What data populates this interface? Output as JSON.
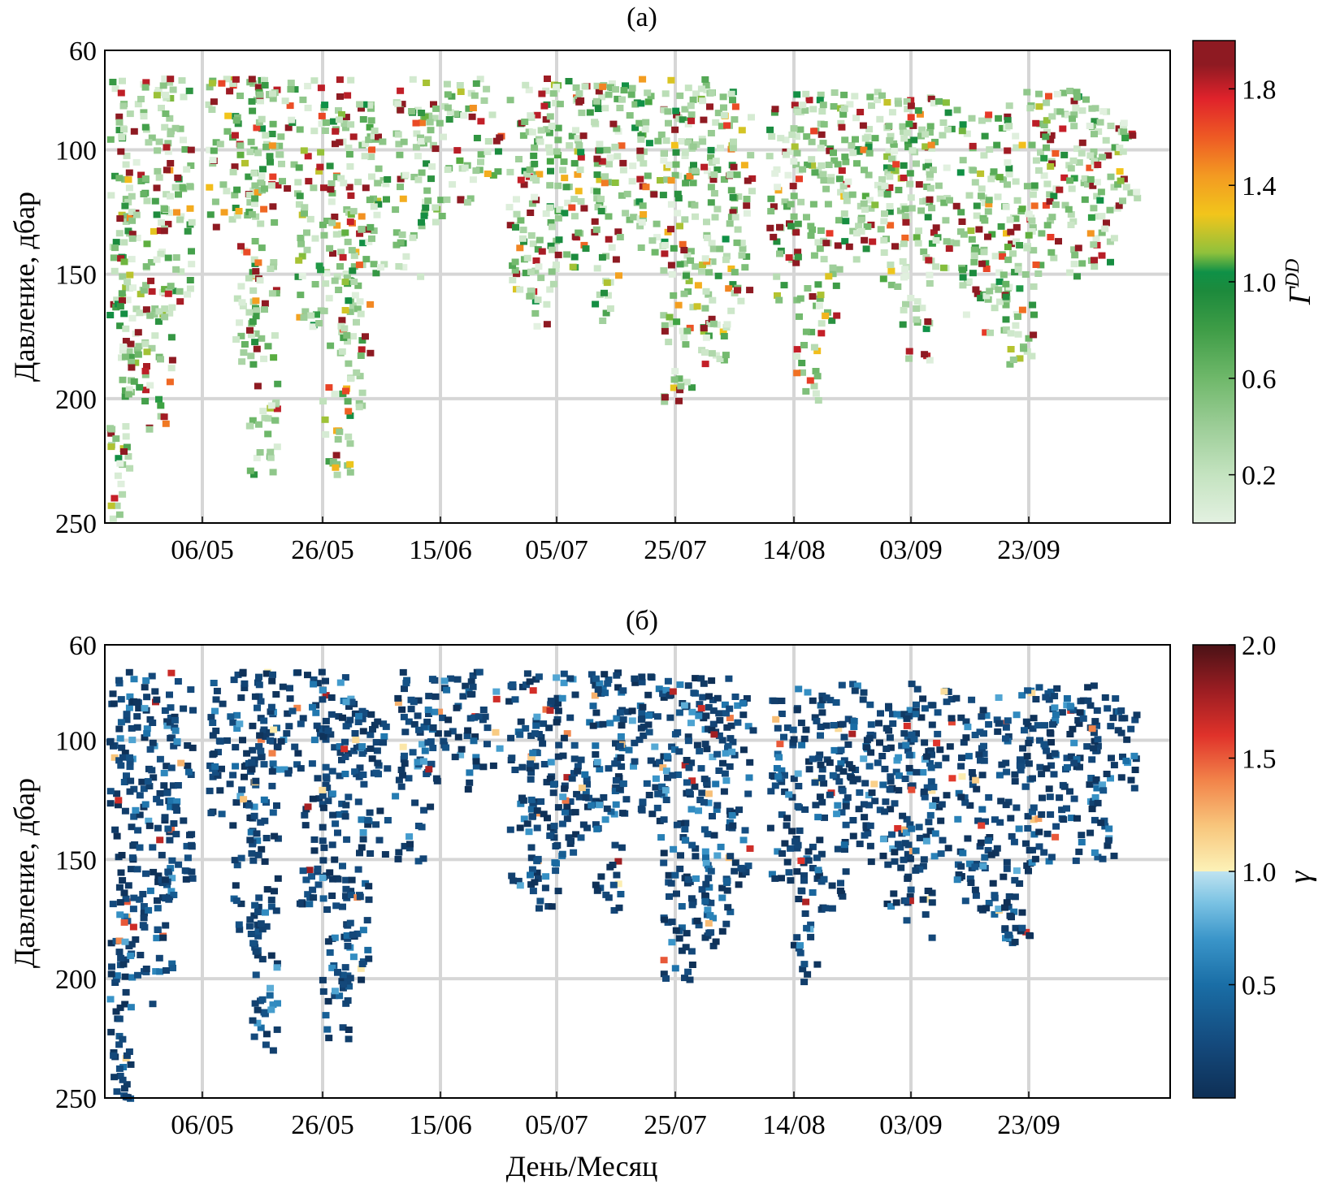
{
  "chart_data": [
    {
      "type": "heatmap",
      "title": "(а)",
      "xlabel": "",
      "ylabel": "Давление, дбар",
      "x_ticks": [
        "06/05",
        "26/05",
        "15/06",
        "05/07",
        "25/07",
        "14/08",
        "03/09",
        "23/09"
      ],
      "y_ticks": [
        60,
        100,
        150,
        200,
        250
      ],
      "ylim": [
        250,
        60
      ],
      "xlim": [
        "26/04",
        "11/10"
      ],
      "grid": true,
      "colorbar": {
        "label": "Γ^DD",
        "label_main": "Γ",
        "label_sup": "DD",
        "range": [
          0,
          2.0
        ],
        "ticks": [
          0.2,
          0.6,
          1.0,
          1.4,
          1.8
        ],
        "colors": [
          "#e3f1e1",
          "#c4e3c0",
          "#9ccd97",
          "#6fb86a",
          "#3f9d47",
          "#1d8a3c",
          "#0f9147",
          "#8fc13c",
          "#f2c51b",
          "#f39a22",
          "#ee5a24",
          "#e0222b",
          "#8e1a22"
        ],
        "stops": [
          0,
          0.1,
          0.2,
          0.3,
          0.4,
          0.48,
          0.52,
          0.56,
          0.64,
          0.72,
          0.8,
          0.88,
          0.95
        ]
      }
    },
    {
      "type": "heatmap",
      "title": "(б)",
      "xlabel": "День/Месяц",
      "ylabel": "Давление, дбар",
      "x_ticks": [
        "06/05",
        "26/05",
        "15/06",
        "05/07",
        "25/07",
        "14/08",
        "03/09",
        "23/09"
      ],
      "y_ticks": [
        60,
        100,
        150,
        200,
        250
      ],
      "ylim": [
        250,
        60
      ],
      "xlim": [
        "26/04",
        "11/10"
      ],
      "grid": true,
      "colorbar": {
        "label": "γ",
        "range": [
          0,
          2.0
        ],
        "ticks": [
          0.5,
          1.0,
          1.5,
          2.0
        ],
        "colors": [
          "#0e2f55",
          "#144a7d",
          "#1a6ea6",
          "#3a95c9",
          "#7ac2e3",
          "#bfe3f0",
          "#fcf2b8",
          "#f8c67c",
          "#f2844a",
          "#e0322a",
          "#9b1d22",
          "#4a1216"
        ],
        "stops": [
          0,
          0.12,
          0.25,
          0.35,
          0.43,
          0.5,
          0.5,
          0.6,
          0.7,
          0.8,
          0.9,
          1.0
        ]
      }
    }
  ]
}
